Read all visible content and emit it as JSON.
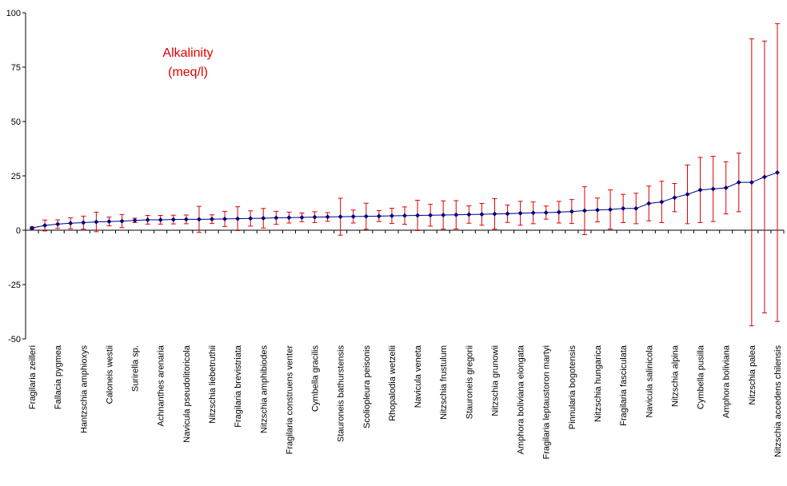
{
  "chart_data": {
    "type": "line",
    "title": "Alkalinity",
    "subtitle": "(meq/l)",
    "categories": [
      "Fragilaria zeilleri",
      null,
      "Fallacia pygmea",
      null,
      "Hantzschia amphioxys",
      null,
      "Caloneis westii",
      null,
      "Surirella sp.",
      null,
      "Achnanthes arenaria",
      null,
      "Navicula pseudolitoricola",
      null,
      "Nitzschia liebetruthii",
      null,
      "Fragilaria brevistriata",
      null,
      "Nitzschia amphibiodes",
      null,
      "Fragilaria construens venter",
      null,
      "Cymbella gracilis",
      null,
      "Stauroneis bathurstensis",
      null,
      "Scoliopleura peisonis",
      null,
      "Rhopalodia wetzelii",
      null,
      "Navicula veneta",
      null,
      "Nitzschia frustulum",
      null,
      "Stauroneis gregorii",
      null,
      "Nitzschia grunowii",
      null,
      "Amphora boliviana elongata",
      null,
      "Fragilaria leptaustoron martyi",
      null,
      "Pinnularia bogotensis",
      null,
      "Nitzschia hungarica",
      null,
      "Fragilaria fasciculata",
      null,
      "Navicula salinicola",
      null,
      "Nitzschia alpina",
      null,
      "Cymbella pusilla",
      null,
      "Amphora boliviana",
      null,
      "Nitzschia palea",
      null,
      "Nitzschia accedens chilensis"
    ],
    "values": [
      1.0,
      2.2,
      2.8,
      3.2,
      3.5,
      3.8,
      4.0,
      4.2,
      4.5,
      4.8,
      4.8,
      4.9,
      5.0,
      5.0,
      5.1,
      5.2,
      5.3,
      5.4,
      5.5,
      5.7,
      5.8,
      5.9,
      6.0,
      6.1,
      6.2,
      6.3,
      6.4,
      6.5,
      6.6,
      6.7,
      6.8,
      6.9,
      7.0,
      7.1,
      7.2,
      7.3,
      7.5,
      7.6,
      7.8,
      8.0,
      8.1,
      8.3,
      8.6,
      9.0,
      9.3,
      9.5,
      10.0,
      10.0,
      12.3,
      13.0,
      15.0,
      16.5,
      18.5,
      19.0,
      19.5,
      22.0,
      22.0,
      24.5,
      26.5
    ],
    "errors": [
      0.5,
      2.5,
      2.0,
      2.5,
      3.0,
      4.5,
      2.0,
      3.0,
      1.0,
      2.0,
      2.0,
      2.0,
      2.0,
      6.0,
      2.0,
      3.5,
      5.5,
      3.5,
      4.5,
      3.0,
      2.5,
      2.0,
      2.5,
      2.0,
      8.5,
      3.0,
      6.0,
      2.5,
      3.5,
      4.0,
      7.0,
      5.0,
      6.5,
      6.5,
      4.0,
      5.0,
      7.0,
      4.0,
      5.5,
      5.0,
      3.0,
      5.0,
      5.5,
      11.0,
      5.5,
      9.0,
      6.5,
      7.0,
      8.0,
      9.5,
      6.5,
      13.5,
      15.0,
      15.0,
      12.0,
      13.5,
      66.0,
      62.5,
      68.5
    ],
    "color": "#000080",
    "error_color": "#e00000",
    "ylim": [
      -50,
      100
    ],
    "yticks": [
      100,
      75,
      50,
      25,
      0,
      -25,
      -50
    ],
    "grid": false
  }
}
